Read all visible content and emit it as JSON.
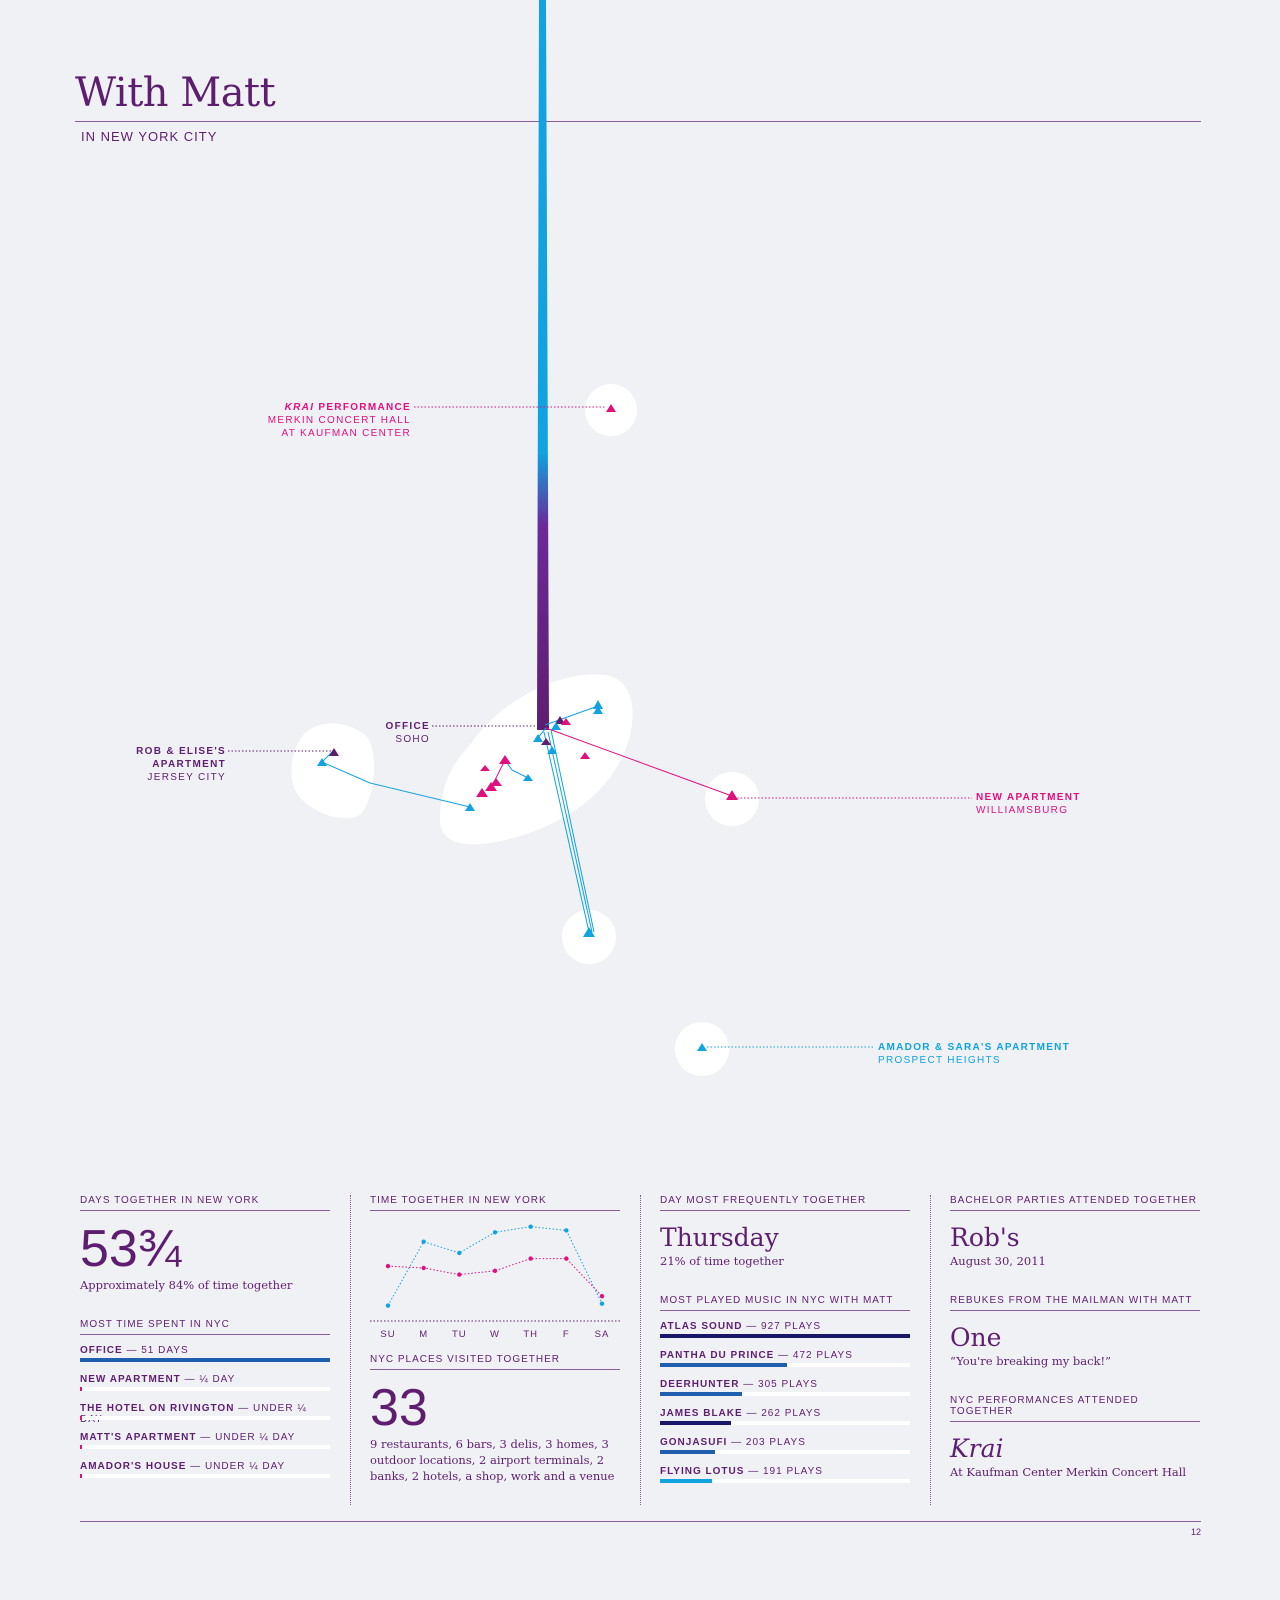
{
  "header": {
    "title": "With Matt",
    "subtitle": "IN NEW YORK CITY"
  },
  "map_labels": {
    "krai": {
      "line1_italic": "KRAI",
      "line1_rest": " PERFORMANCE",
      "line2": "MERKIN CONCERT HALL",
      "line3": "AT KAUFMAN CENTER"
    },
    "office": {
      "line1": "OFFICE",
      "line2": "SOHO"
    },
    "rob_elise": {
      "line1": "ROB & ELISE'S",
      "line2": "APARTMENT",
      "line3": "JERSEY CITY"
    },
    "new_apartment": {
      "line1": "NEW APARTMENT",
      "line2": "WILLIAMSBURG"
    },
    "amador_sara": {
      "line1": "AMADOR & SARA'S APARTMENT",
      "line2": "PROSPECT HEIGHTS"
    }
  },
  "colors": {
    "purple": "#5e1e70",
    "magenta": "#e0107f",
    "cyan": "#10a3e0",
    "navy": "#1a176b",
    "blue": "#1f5fad"
  },
  "days_together": {
    "heading": "DAYS TOGETHER IN NEW YORK",
    "value": "53¾",
    "note": "Approximately 84% of time together"
  },
  "most_time": {
    "heading": "MOST TIME SPENT IN NYC",
    "items": [
      {
        "name": "OFFICE",
        "value": " — 51 DAYS",
        "fraction": 1.0
      },
      {
        "name": "NEW APARTMENT",
        "value": " — ¼ DAY",
        "fraction": 0.008
      },
      {
        "name": "THE HOTEL ON RIVINGTON",
        "value": " — UNDER ¼ DAY",
        "fraction": 0.006
      },
      {
        "name": "MATT'S APARTMENT",
        "value": " — UNDER ¼ DAY",
        "fraction": 0.006
      },
      {
        "name": "AMADOR'S HOUSE",
        "value": " — UNDER ¼ DAY",
        "fraction": 0.006
      }
    ]
  },
  "time_together": {
    "heading": "TIME TOGETHER IN NEW YORK",
    "chart_data": {
      "type": "line",
      "categories": [
        "SU",
        "M",
        "TU",
        "W",
        "TH",
        "F",
        "SA"
      ],
      "series": [
        {
          "values": [
            0.1,
            0.78,
            0.66,
            0.88,
            0.94,
            0.9,
            0.12
          ],
          "color": "#10a3e0"
        },
        {
          "values": [
            0.52,
            0.5,
            0.43,
            0.47,
            0.6,
            0.6,
            0.2
          ],
          "color": "#e0107f"
        }
      ],
      "ylim": [
        0,
        1
      ],
      "grid": false
    }
  },
  "places_visited": {
    "heading": "NYC PLACES VISITED TOGETHER",
    "value": "33",
    "note": "9 restaurants, 6 bars, 3 delis, 3 homes, 3 outdoor locations, 2 airport terminals, 2 banks, 2 hotels, a shop, work and a venue"
  },
  "day_most": {
    "heading": "DAY MOST FREQUENTLY TOGETHER",
    "value": "Thursday",
    "note": "21% of time together"
  },
  "music": {
    "heading": "MOST PLAYED MUSIC IN NYC WITH MATT",
    "items": [
      {
        "name": "ATLAS SOUND",
        "value": " — 927 PLAYS",
        "plays": 927,
        "color": "#1a176b"
      },
      {
        "name": "PANTHA DU PRINCE",
        "value": " — 472 PLAYS",
        "plays": 472,
        "color": "#1f5fad"
      },
      {
        "name": "DEERHUNTER",
        "value": " — 305 PLAYS",
        "plays": 305,
        "color": "#1f5fad"
      },
      {
        "name": "JAMES BLAKE",
        "value": " — 262 PLAYS",
        "plays": 262,
        "color": "#1a176b"
      },
      {
        "name": "GONJASUFI",
        "value": " — 203 PLAYS",
        "plays": 203,
        "color": "#1f5fad"
      },
      {
        "name": "FLYING LOTUS",
        "value": " — 191 PLAYS",
        "plays": 191,
        "color": "#10a3e0"
      }
    ]
  },
  "bachelor": {
    "heading": "BACHELOR PARTIES ATTENDED TOGETHER",
    "value": "Rob's",
    "note": "August 30, 2011"
  },
  "rebukes": {
    "heading": "REBUKES FROM THE MAILMAN WITH MATT",
    "value": "One",
    "note": "“You're breaking my back!”"
  },
  "performances": {
    "heading": "NYC PERFORMANCES ATTENDED TOGETHER",
    "value": "Krai",
    "note": "At Kaufman Center Merkin Concert Hall"
  },
  "footer": {
    "page_number": "12"
  }
}
